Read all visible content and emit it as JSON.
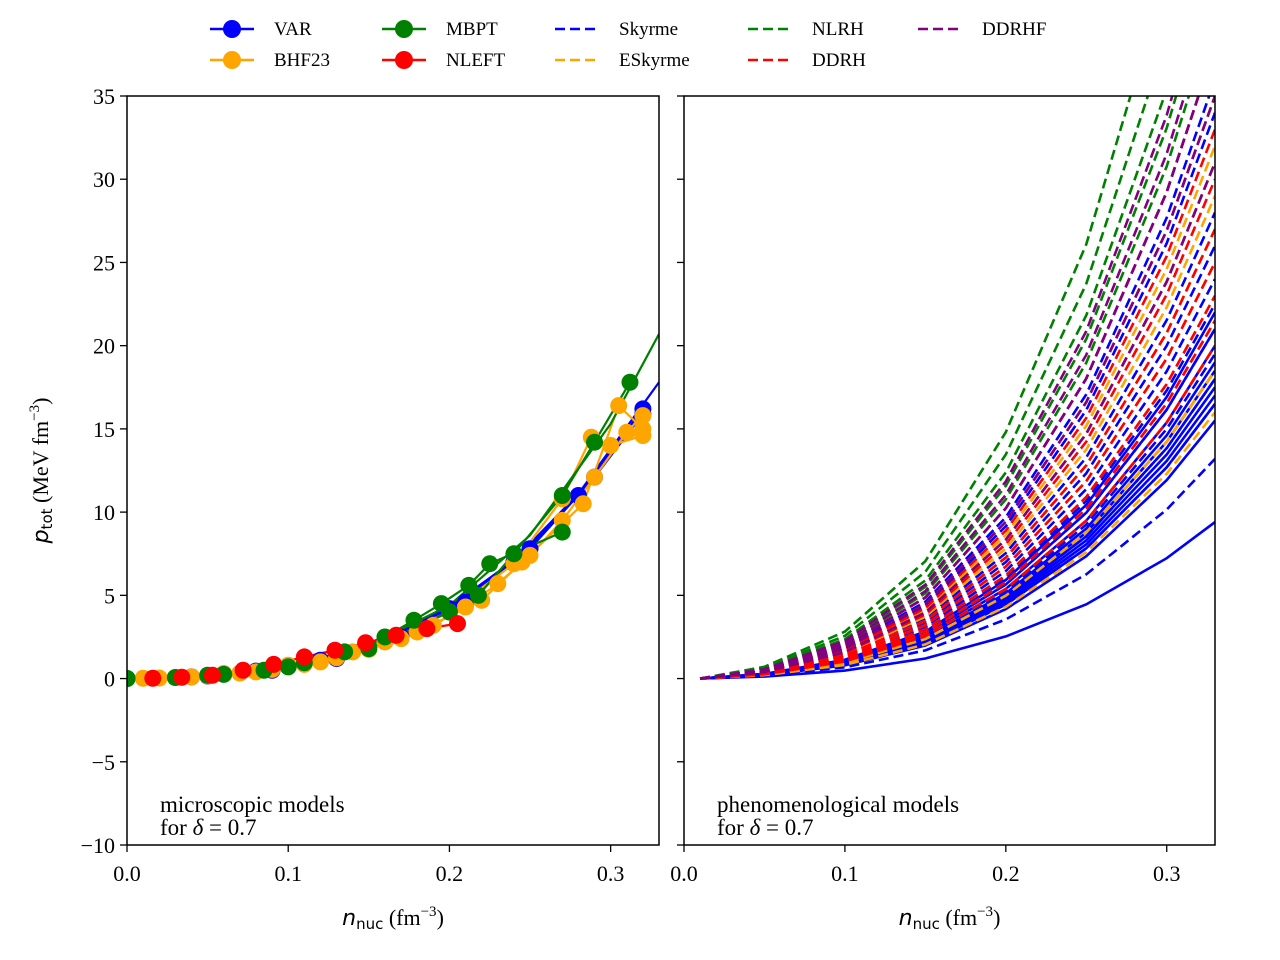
{
  "legend": {
    "placement": "top-center",
    "entries": [
      {
        "label": "VAR",
        "color": "#0000ff",
        "style": "solid-marker"
      },
      {
        "label": "BHF23",
        "color": "#ffa500",
        "style": "solid-marker"
      },
      {
        "label": "MBPT",
        "color": "#008000",
        "style": "solid-marker"
      },
      {
        "label": "NLEFT",
        "color": "#ff0000",
        "style": "solid-marker"
      },
      {
        "label": "Skyrme",
        "color": "#0000ff",
        "style": "dashed"
      },
      {
        "label": "ESkyrme",
        "color": "#ffa500",
        "style": "dashed"
      },
      {
        "label": "NLRH",
        "color": "#008000",
        "style": "dashed"
      },
      {
        "label": "DDRH",
        "color": "#ff0000",
        "style": "dashed"
      },
      {
        "label": "DDRHF",
        "color": "#800080",
        "style": "dashed"
      }
    ]
  },
  "chart_data": [
    {
      "type": "line",
      "panel": "left",
      "annotation_line1": "microscopic models",
      "annotation_line2_prefix": "for ",
      "annotation_line2_symbol": "δ",
      "annotation_line2_value": " = 0.7",
      "xlabel_main": "n",
      "xlabel_sub": "nuc",
      "xlabel_unit": " (fm",
      "xlabel_exp": "−3",
      "xlabel_close": ")",
      "ylabel_main": "p",
      "ylabel_sub": "tot",
      "ylabel_unit": " (MeV fm",
      "ylabel_exp": "−3",
      "ylabel_close": ")",
      "xlim": [
        0.0,
        0.33
      ],
      "ylim": [
        -10,
        35
      ],
      "xticks": [
        0.0,
        0.1,
        0.2,
        0.3
      ],
      "xtick_labels": [
        "0.0",
        "0.1",
        "0.2",
        "0.3"
      ],
      "yticks": [
        -10,
        -5,
        0,
        5,
        10,
        15,
        20,
        25,
        30,
        35
      ],
      "ytick_labels": [
        "−10",
        "−5",
        "0",
        "5",
        "10",
        "15",
        "20",
        "25",
        "30",
        "35"
      ],
      "grid": false,
      "series": [
        {
          "model": "VAR",
          "color": "#0000ff",
          "marker": true,
          "x": [
            0.0,
            0.04,
            0.08,
            0.12,
            0.16,
            0.2,
            0.24,
            0.28,
            0.32
          ],
          "y": [
            0.0,
            0.1,
            0.45,
            1.1,
            2.3,
            4.2,
            7.0,
            11.0,
            16.2
          ]
        },
        {
          "model": "VAR",
          "color": "#0000ff",
          "marker": true,
          "x": [
            0.0,
            0.05,
            0.09,
            0.13,
            0.17,
            0.21,
            0.25,
            0.29,
            0.32
          ],
          "y": [
            0.0,
            0.15,
            0.5,
            1.2,
            2.5,
            4.6,
            7.8,
            12.1,
            15.9
          ]
        },
        {
          "model": "VAR",
          "color": "#0000ff",
          "marker": false,
          "x": [
            0.0,
            0.04,
            0.08,
            0.12,
            0.16,
            0.2,
            0.24,
            0.28,
            0.33
          ],
          "y": [
            0.0,
            0.1,
            0.45,
            1.15,
            2.4,
            4.3,
            7.1,
            11.1,
            17.8
          ]
        },
        {
          "model": "BHF23",
          "color": "#ffa500",
          "marker": true,
          "x": [
            0.01,
            0.03,
            0.05,
            0.07,
            0.09,
            0.11,
            0.13,
            0.15,
            0.17,
            0.19,
            0.21,
            0.23,
            0.25,
            0.27,
            0.29,
            0.31,
            0.32
          ],
          "y": [
            0.02,
            0.07,
            0.17,
            0.33,
            0.55,
            0.85,
            1.25,
            1.75,
            2.4,
            3.2,
            4.3,
            5.7,
            7.4,
            9.5,
            12.1,
            14.8,
            15.8
          ]
        },
        {
          "model": "BHF23",
          "color": "#ffa500",
          "marker": true,
          "x": [
            0.02,
            0.06,
            0.1,
            0.14,
            0.18,
            0.22,
            0.245,
            0.283,
            0.305,
            0.32
          ],
          "y": [
            0.03,
            0.3,
            0.8,
            1.6,
            2.8,
            4.7,
            7.0,
            10.5,
            16.4,
            15.0
          ]
        },
        {
          "model": "BHF23",
          "color": "#ffa500",
          "marker": true,
          "x": [
            0.04,
            0.08,
            0.12,
            0.16,
            0.2,
            0.24,
            0.27,
            0.288,
            0.3,
            0.32
          ],
          "y": [
            0.1,
            0.4,
            1.0,
            2.2,
            4.0,
            6.9,
            10.8,
            14.5,
            14.0,
            14.6
          ]
        },
        {
          "model": "MBPT",
          "color": "#008000",
          "marker": true,
          "x": [
            0.0,
            0.03,
            0.06,
            0.085,
            0.11,
            0.135,
            0.16,
            0.178,
            0.195,
            0.212,
            0.225,
            0.27
          ],
          "y": [
            0.0,
            0.06,
            0.25,
            0.5,
            0.95,
            1.6,
            2.5,
            3.5,
            4.5,
            5.6,
            6.9,
            8.8
          ]
        },
        {
          "model": "MBPT",
          "color": "#008000",
          "marker": true,
          "x": [
            0.0,
            0.05,
            0.1,
            0.15,
            0.2,
            0.218,
            0.24,
            0.27,
            0.29,
            0.312
          ],
          "y": [
            0.0,
            0.2,
            0.7,
            1.8,
            4.0,
            5.0,
            7.5,
            11.0,
            14.2,
            17.8
          ]
        },
        {
          "model": "MBPT",
          "color": "#008000",
          "marker": false,
          "x": [
            0.0,
            0.05,
            0.1,
            0.15,
            0.2,
            0.25,
            0.3,
            0.33
          ],
          "y": [
            0.0,
            0.18,
            0.75,
            2.0,
            4.4,
            8.6,
            15.3,
            20.7
          ]
        },
        {
          "model": "NLEFT",
          "color": "#ff0000",
          "marker": true,
          "x": [
            0.016,
            0.034,
            0.053,
            0.072,
            0.091,
            0.11,
            0.129,
            0.148,
            0.167,
            0.186,
            0.205
          ],
          "y": [
            0.02,
            0.08,
            0.2,
            0.5,
            0.85,
            1.3,
            1.7,
            2.15,
            2.6,
            3.0,
            3.3
          ]
        }
      ]
    },
    {
      "type": "line",
      "panel": "right",
      "annotation_line1": "phenomenological models",
      "annotation_line2_prefix": "for ",
      "annotation_line2_symbol": "δ",
      "annotation_line2_value": " = 0.7",
      "xlabel_main": "n",
      "xlabel_sub": "nuc",
      "xlabel_unit": " (fm",
      "xlabel_exp": "−3",
      "xlabel_close": ")",
      "xlim": [
        0.0,
        0.33
      ],
      "ylim": [
        -10,
        35
      ],
      "xticks": [
        0.0,
        0.1,
        0.2,
        0.3
      ],
      "xtick_labels": [
        "0.0",
        "0.1",
        "0.2",
        "0.3"
      ],
      "yticks": [
        -10,
        -5,
        0,
        5,
        10,
        15,
        20,
        25,
        30,
        35
      ],
      "grid": false,
      "x": [
        0.01,
        0.05,
        0.1,
        0.15,
        0.2,
        0.25,
        0.3,
        0.33
      ],
      "curve_shape": [
        0.0,
        0.01,
        0.04,
        0.1,
        0.21,
        0.37,
        0.6,
        0.78
      ],
      "series": [
        {
          "model": "Skyrme",
          "color": "#0000ff",
          "solid": true,
          "p_at_0_33": [
            9.4,
            15.5,
            16.5,
            17.0,
            17.5,
            18.0,
            18.5,
            19.0,
            20.0,
            21.0,
            22.0
          ]
        },
        {
          "model": "Skyrme",
          "color": "#0000ff",
          "solid": false,
          "p_at_0_33": [
            13.2,
            16.5,
            18.0,
            19.5,
            21.0,
            22.5,
            24.0,
            26.0,
            28.0,
            31.0,
            34.0,
            36.0,
            38.0
          ]
        },
        {
          "model": "ESkyrme",
          "color": "#ffa500",
          "solid": false,
          "p_at_0_33": [
            16.0,
            18.5,
            20.0,
            21.5,
            23.0,
            25.0,
            27.0,
            29.0,
            31.0,
            32.0
          ]
        },
        {
          "model": "NLRH",
          "color": "#008000",
          "solid": false,
          "p_at_0_33": [
            40.0,
            43.0,
            46.0,
            50.0,
            55.0
          ]
        },
        {
          "model": "DDRH",
          "color": "#ff0000",
          "solid": false,
          "p_at_0_33": [
            20.0,
            21.5,
            23.0,
            25.0,
            27.0,
            30.0,
            33.0,
            35.0,
            38.0
          ]
        },
        {
          "model": "DDRHF",
          "color": "#800080",
          "solid": false,
          "p_at_0_33": [
            31.0,
            35.0,
            38.0,
            41.0,
            44.0
          ]
        }
      ]
    }
  ]
}
